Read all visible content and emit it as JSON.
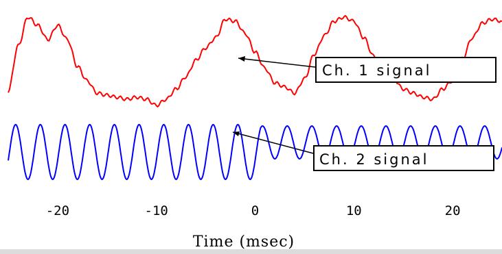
{
  "chart_data": {
    "type": "line",
    "title": "",
    "xlabel": "Time (msec)",
    "ylabel": "",
    "xlim": [
      -25,
      25
    ],
    "ylim": [
      -1.25,
      1.25
    ],
    "x_ticks": [
      -20,
      -10,
      0,
      10,
      20
    ],
    "x_tick_labels": [
      "-20",
      "-10",
      "0",
      "10",
      "20"
    ],
    "grid": false,
    "series": [
      {
        "name": "Ch. 1 signal",
        "color": "#ff0000",
        "x": [
          -25,
          -24,
          -23,
          -22,
          -21,
          -20,
          -19,
          -18,
          -17,
          -16,
          -15,
          -14,
          -13,
          -12,
          -11,
          -10,
          -9,
          -8,
          -7,
          -6,
          -5,
          -4,
          -3,
          -2,
          -1,
          0,
          1,
          2,
          3,
          4,
          5,
          6,
          7,
          8,
          9,
          10,
          11,
          12,
          13,
          14,
          15,
          16,
          17,
          18,
          19,
          20,
          21,
          22,
          23,
          24,
          25
        ],
        "y": [
          -0.8,
          0.3,
          1.0,
          0.8,
          0.45,
          0.8,
          0.45,
          -0.2,
          -0.55,
          -0.85,
          -0.9,
          -0.95,
          -1.0,
          -0.95,
          -1.0,
          -1.15,
          -1.0,
          -0.75,
          -0.45,
          -0.05,
          0.25,
          0.5,
          0.95,
          0.9,
          0.6,
          0.15,
          -0.25,
          -0.6,
          -0.7,
          -0.85,
          -0.5,
          0.1,
          0.55,
          0.9,
          1.0,
          0.9,
          0.5,
          0.05,
          -0.4,
          -0.5,
          -0.75,
          -0.85,
          -0.95,
          -1.0,
          -0.75,
          -0.55,
          0.0,
          0.5,
          0.85,
          0.95,
          0.9
        ]
      },
      {
        "name": "Ch. 2 signal",
        "color": "#0000ff",
        "x_start": -25,
        "x_end": 25,
        "peaks": [
          -24.25,
          -21.75,
          -19.25,
          -16.75,
          -14.25,
          -11.75,
          -9.25,
          -6.75,
          -4.25,
          -1.75,
          0.75,
          3.25,
          5.75,
          8.25,
          10.75,
          13.25,
          15.75,
          18.25,
          20.75,
          23.25
        ],
        "amplitude": 1.0,
        "amplitude_after_x": 0.55,
        "amplitude_after_value": 0.6
      }
    ],
    "annotations": [
      {
        "text": "Ch. 1 signal",
        "series": "Ch. 1 signal"
      },
      {
        "text": "Ch. 2 signal",
        "series": "Ch. 2 signal"
      }
    ]
  }
}
